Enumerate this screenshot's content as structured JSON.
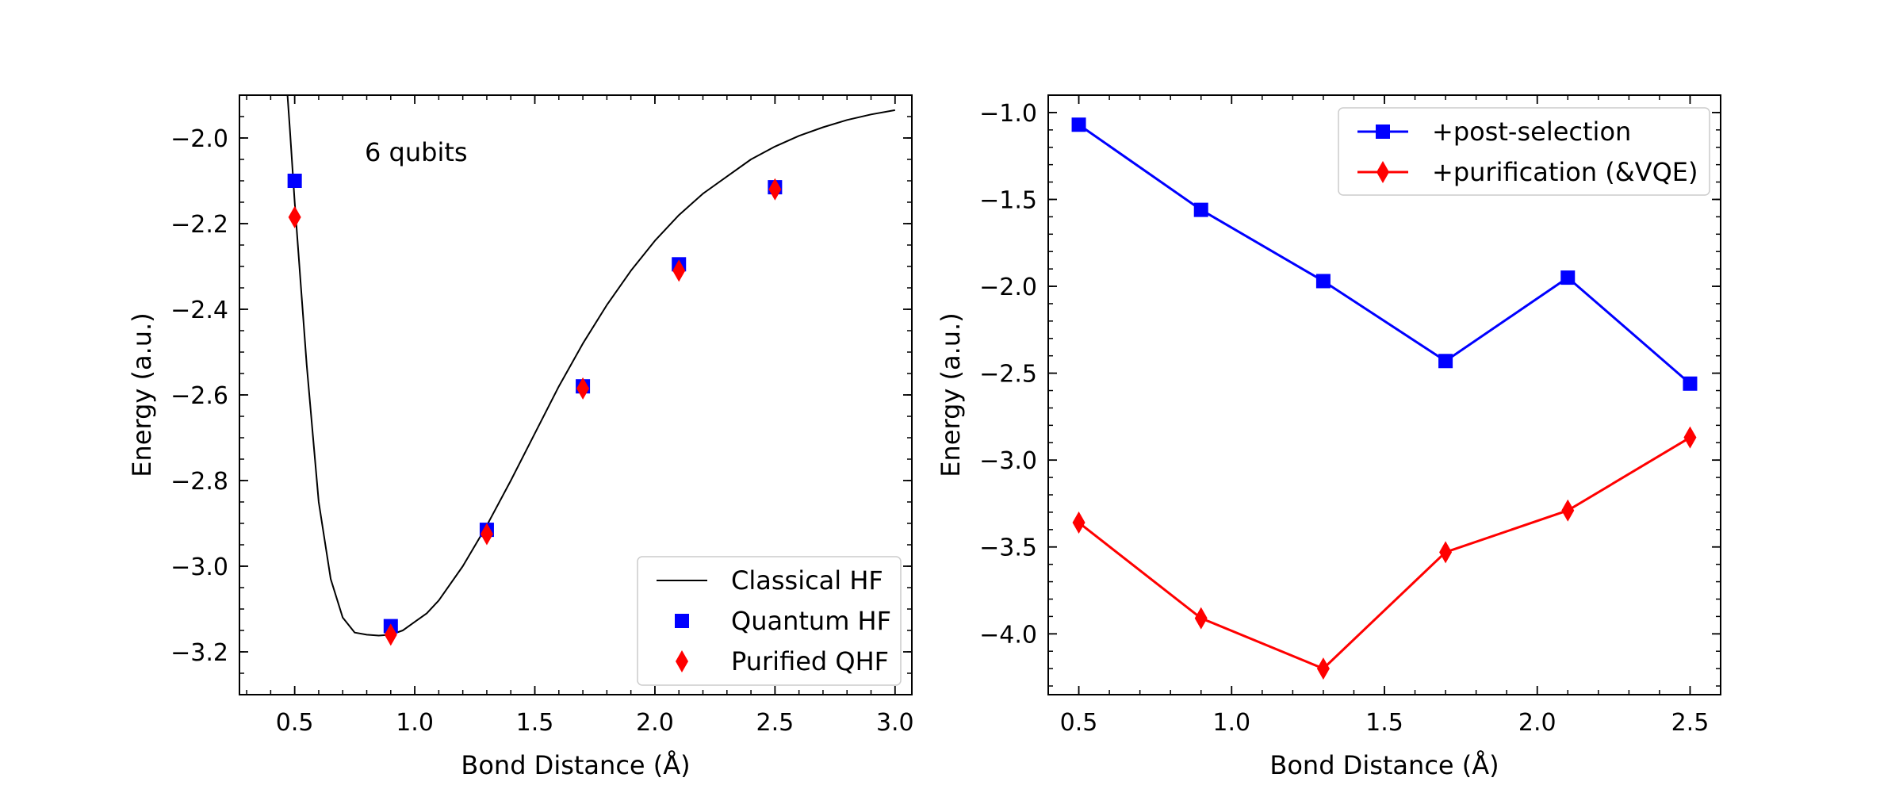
{
  "chart_data": [
    {
      "type": "line",
      "xlabel": "Bond Distance (Å)",
      "ylabel": "Energy (a.u.)",
      "xlim": [
        0.27,
        3.07
      ],
      "ylim": [
        -3.3,
        -1.9
      ],
      "xticks": [
        0.5,
        1.0,
        1.5,
        2.0,
        2.5,
        3.0
      ],
      "xtick_labels": [
        "0.5",
        "1.0",
        "1.5",
        "2.0",
        "2.5",
        "3.0"
      ],
      "yticks": [
        -3.2,
        -3.0,
        -2.8,
        -2.6,
        -2.4,
        -2.2,
        -2.0
      ],
      "ytick_labels": [
        "−3.2",
        "−3.0",
        "−2.8",
        "−2.6",
        "−2.4",
        "−2.2",
        "−2.0"
      ],
      "annotation": "6 qubits",
      "legend_position": "lower-right",
      "grid": false,
      "series": [
        {
          "name": "Classical HF",
          "kind": "line",
          "color": "#000000",
          "x": [
            0.47,
            0.48,
            0.5,
            0.55,
            0.6,
            0.65,
            0.7,
            0.75,
            0.8,
            0.85,
            0.9,
            0.95,
            1.0,
            1.05,
            1.1,
            1.2,
            1.3,
            1.4,
            1.5,
            1.6,
            1.7,
            1.8,
            1.9,
            2.0,
            2.1,
            2.2,
            2.3,
            2.4,
            2.5,
            2.6,
            2.7,
            2.8,
            2.9,
            3.0
          ],
          "y": [
            -1.9,
            -1.98,
            -2.15,
            -2.53,
            -2.85,
            -3.03,
            -3.12,
            -3.155,
            -3.16,
            -3.162,
            -3.16,
            -3.15,
            -3.13,
            -3.11,
            -3.08,
            -3.0,
            -2.905,
            -2.8,
            -2.69,
            -2.58,
            -2.48,
            -2.39,
            -2.31,
            -2.24,
            -2.18,
            -2.13,
            -2.09,
            -2.05,
            -2.02,
            -1.995,
            -1.975,
            -1.958,
            -1.945,
            -1.935
          ]
        },
        {
          "name": "Quantum HF",
          "kind": "scatter",
          "marker": "square",
          "color": "#0000ff",
          "x": [
            0.5,
            0.9,
            1.3,
            1.7,
            2.1,
            2.5
          ],
          "y": [
            -2.1,
            -3.14,
            -2.915,
            -2.58,
            -2.295,
            -2.115
          ]
        },
        {
          "name": "Purified QHF",
          "kind": "scatter",
          "marker": "diamond",
          "color": "#ff0000",
          "x": [
            0.5,
            0.9,
            1.3,
            1.7,
            2.1,
            2.5
          ],
          "y": [
            -2.185,
            -3.16,
            -2.925,
            -2.585,
            -2.31,
            -2.12
          ]
        }
      ]
    },
    {
      "type": "line",
      "xlabel": "Bond Distance (Å)",
      "ylabel": "Energy (a.u.)",
      "xlim": [
        0.4,
        2.6
      ],
      "ylim": [
        -4.35,
        -0.9
      ],
      "xticks": [
        0.5,
        1.0,
        1.5,
        2.0,
        2.5
      ],
      "xtick_labels": [
        "0.5",
        "1.0",
        "1.5",
        "2.0",
        "2.5"
      ],
      "yticks": [
        -4.0,
        -3.5,
        -3.0,
        -2.5,
        -2.0,
        -1.5,
        -1.0
      ],
      "ytick_labels": [
        "−4.0",
        "−3.5",
        "−3.0",
        "−2.5",
        "−2.0",
        "−1.5",
        "−1.0"
      ],
      "legend_position": "upper-right",
      "grid": false,
      "series": [
        {
          "name": "+post-selection",
          "kind": "line-marker",
          "marker": "square",
          "color": "#0000ff",
          "x": [
            0.5,
            0.9,
            1.3,
            1.7,
            2.1,
            2.5
          ],
          "y": [
            -1.07,
            -1.56,
            -1.97,
            -2.43,
            -1.95,
            -2.56
          ]
        },
        {
          "name": "+purification (&VQE)",
          "kind": "line-marker",
          "marker": "diamond",
          "color": "#ff0000",
          "x": [
            0.5,
            0.9,
            1.3,
            1.7,
            2.1,
            2.5
          ],
          "y": [
            -3.36,
            -3.91,
            -4.2,
            -3.53,
            -3.29,
            -2.87
          ]
        }
      ]
    }
  ]
}
